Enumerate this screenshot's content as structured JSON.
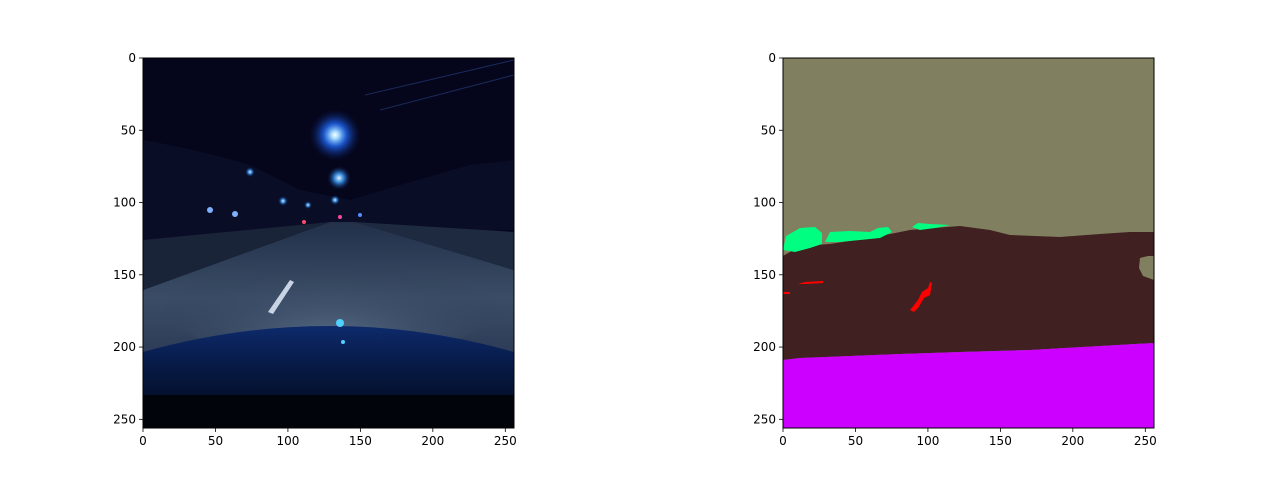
{
  "figure": {
    "left_panel": {
      "kind": "camera-image",
      "scene": "night-road",
      "x_ticks": [
        "0",
        "50",
        "100",
        "150",
        "200",
        "250"
      ],
      "y_ticks": [
        "0",
        "50",
        "100",
        "150",
        "200",
        "250"
      ],
      "x_tick_values": [
        0,
        50,
        100,
        150,
        200,
        250
      ],
      "y_tick_values": [
        0,
        50,
        100,
        150,
        200,
        250
      ],
      "extent": [
        0,
        256
      ]
    },
    "right_panel": {
      "kind": "segmentation-mask",
      "x_ticks": [
        "0",
        "50",
        "100",
        "150",
        "200",
        "250"
      ],
      "y_ticks": [
        "0",
        "50",
        "100",
        "150",
        "200",
        "250"
      ],
      "x_tick_values": [
        0,
        50,
        100,
        150,
        200,
        250
      ],
      "y_tick_values": [
        0,
        50,
        100,
        150,
        200,
        250
      ],
      "extent": [
        0,
        256
      ],
      "class_colors": {
        "sky": "#807f5f",
        "vegetation": "#00ff80",
        "road": "#402020",
        "lane-marking": "#ff0000",
        "ego-vehicle": "#cc00ff"
      }
    }
  }
}
